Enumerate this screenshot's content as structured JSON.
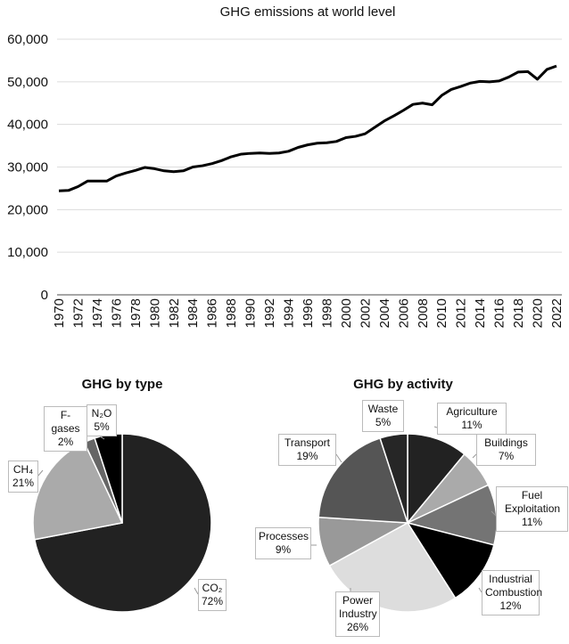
{
  "chart_data": [
    {
      "type": "line",
      "title": "GHG emissions at world level",
      "xlabel": "",
      "ylabel": "",
      "ylim": [
        0,
        60000
      ],
      "yticks": [
        "0",
        "10,000",
        "20,000",
        "30,000",
        "40,000",
        "50,000",
        "60,000"
      ],
      "grid": true,
      "x": [
        1970,
        1971,
        1972,
        1973,
        1974,
        1975,
        1976,
        1977,
        1978,
        1979,
        1980,
        1981,
        1982,
        1983,
        1984,
        1985,
        1986,
        1987,
        1988,
        1989,
        1990,
        1991,
        1992,
        1993,
        1994,
        1995,
        1996,
        1997,
        1998,
        1999,
        2000,
        2001,
        2002,
        2003,
        2004,
        2005,
        2006,
        2007,
        2008,
        2009,
        2010,
        2011,
        2012,
        2013,
        2014,
        2015,
        2016,
        2017,
        2018,
        2019,
        2020,
        2021,
        2022
      ],
      "values": [
        24400,
        24500,
        25400,
        26700,
        26700,
        26700,
        27900,
        28600,
        29200,
        29900,
        29600,
        29100,
        28900,
        29100,
        30000,
        30300,
        30800,
        31500,
        32400,
        33000,
        33200,
        33300,
        33200,
        33300,
        33700,
        34600,
        35200,
        35600,
        35700,
        36000,
        36900,
        37200,
        37800,
        39300,
        40800,
        42000,
        43300,
        44700,
        45000,
        44600,
        46800,
        48200,
        48900,
        49700,
        50100,
        50000,
        50200,
        51100,
        52300,
        52400,
        50600,
        52900,
        53700
      ],
      "xticks": [
        "1970",
        "1972",
        "1974",
        "1976",
        "1978",
        "1980",
        "1982",
        "1984",
        "1986",
        "1988",
        "1990",
        "1992",
        "1994",
        "1996",
        "1998",
        "2000",
        "2002",
        "2004",
        "2006",
        "2008",
        "2010",
        "2012",
        "2014",
        "2016",
        "2018",
        "2020",
        "2022"
      ],
      "color": "#000000"
    },
    {
      "type": "pie",
      "title": "GHG by type",
      "slices": [
        {
          "name": "CO₂",
          "value": 72,
          "label": "72%",
          "color": "#222222"
        },
        {
          "name": "CH₄",
          "value": 21,
          "label": "21%",
          "color": "#aaaaaa"
        },
        {
          "name": "F-gases",
          "value": 2,
          "label": "2%",
          "color": "#666666"
        },
        {
          "name": "N₂O",
          "value": 5,
          "label": "5%",
          "color": "#000000"
        }
      ]
    },
    {
      "type": "pie",
      "title": "GHG by activity",
      "slices": [
        {
          "name": "Agriculture",
          "value": 11,
          "label": "11%",
          "color": "#222222"
        },
        {
          "name": "Buildings",
          "value": 7,
          "label": "7%",
          "color": "#aaaaaa"
        },
        {
          "name": "Fuel Exploitation",
          "value": 11,
          "label": "11%",
          "color": "#747474"
        },
        {
          "name": "Industrial Combustion",
          "value": 12,
          "label": "12%",
          "color": "#000000"
        },
        {
          "name": "Power Industry",
          "value": 26,
          "label": "26%",
          "color": "#dddddd"
        },
        {
          "name": "Processes",
          "value": 9,
          "label": "9%",
          "color": "#999999"
        },
        {
          "name": "Transport",
          "value": 19,
          "label": "19%",
          "color": "#555555"
        },
        {
          "name": "Waste",
          "value": 5,
          "label": "5%",
          "color": "#262626"
        }
      ]
    }
  ]
}
